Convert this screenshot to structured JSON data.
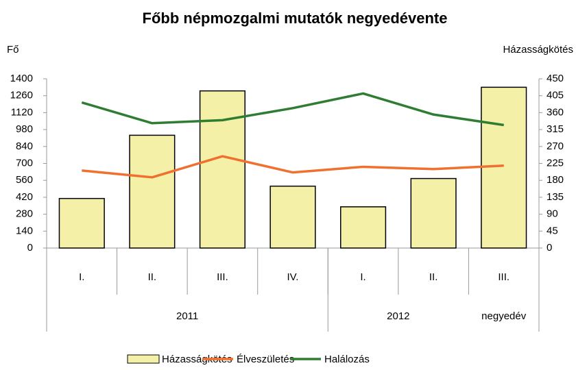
{
  "chart_data": {
    "type": "bar_line",
    "title": "Főbb népmozgalmi mutatók negyedévente",
    "y_label": "Fő",
    "y2_label": "Házasságkötés",
    "categories": [
      "I.",
      "II.",
      "III.",
      "IV.",
      "I.",
      "II.",
      "III."
    ],
    "groups": [
      {
        "label": "2011",
        "count": 4
      },
      {
        "label": "2012",
        "count": 3
      }
    ],
    "group_note": "negyedév",
    "ylim": [
      0,
      1400
    ],
    "yticks": [
      0,
      140,
      280,
      420,
      560,
      700,
      840,
      980,
      1120,
      1260,
      1400
    ],
    "y2lim": [
      0,
      450
    ],
    "y2ticks": [
      0,
      45,
      90,
      135,
      180,
      225,
      270,
      315,
      360,
      405,
      450
    ],
    "series": [
      {
        "name": "Házasságkötés",
        "kind": "bar",
        "color": "#f5f0a8",
        "values": [
          410,
          933,
          1300,
          512,
          341,
          575,
          1330
        ]
      },
      {
        "name": "Élveszületés",
        "kind": "line",
        "axis": "y2",
        "color": "#f07030",
        "values": [
          206,
          188,
          244,
          201,
          216,
          210,
          219
        ]
      },
      {
        "name": "Halálozás",
        "kind": "line",
        "axis": "y2",
        "color": "#2e7d32",
        "values": [
          387,
          332,
          340,
          372,
          411,
          355,
          327
        ]
      }
    ]
  }
}
